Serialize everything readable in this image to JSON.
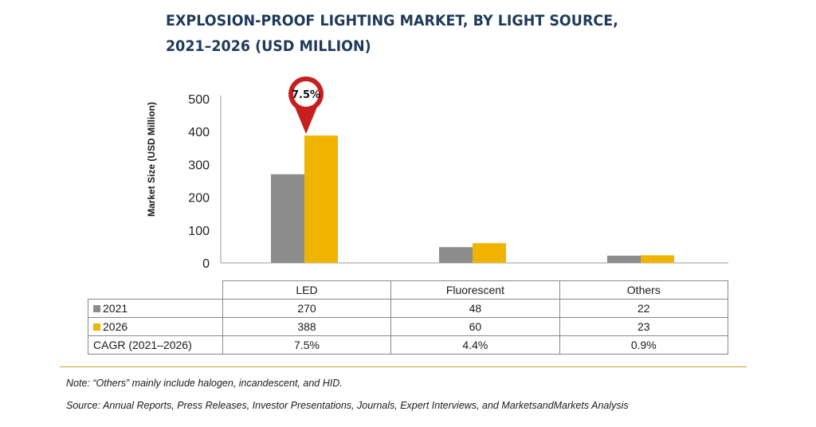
{
  "chart_data": {
    "type": "bar",
    "title_line1": "EXPLOSION-PROOF LIGHTING MARKET, BY LIGHT SOURCE,",
    "title_line2": "2021–2026 (USD MILLION)",
    "ylabel": "Market Size (USD Million)",
    "ylim": [
      0,
      500
    ],
    "yticks": [
      "0",
      "100",
      "200",
      "300",
      "400",
      "500"
    ],
    "categories": [
      "LED",
      "Fluorescent",
      "Others"
    ],
    "series": [
      {
        "name": "2021",
        "color": "#8c8c8c",
        "values": [
          270,
          48,
          22
        ]
      },
      {
        "name": "2026",
        "color": "#f0b400",
        "values": [
          388,
          60,
          23
        ]
      }
    ],
    "cagr_label": "CAGR (2021–2026)",
    "cagr": [
      "7.5%",
      "4.4%",
      "0.9%"
    ],
    "callout": {
      "text": "7.5%",
      "color": "#c81e1e"
    }
  },
  "note": "Note: “Others” mainly include halogen, incandescent, and HID.",
  "source": "Source: Annual Reports, Press Releases, Investor Presentations, Journals, Expert Interviews, and MarketsandMarkets Analysis"
}
